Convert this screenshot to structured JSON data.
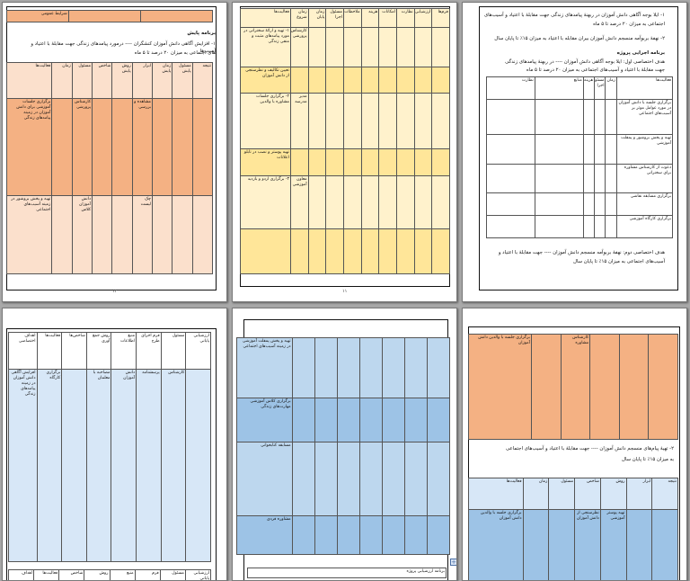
{
  "page_numbers": {
    "p1": "۱۰",
    "p2": "۱۱",
    "p3": "۱۲"
  },
  "page1": {
    "lines": [
      "۱- ایلا بوجه آگاهی دانش آموزان در ربهنهٔ پیامدهای زندگی جهت مقابلهٔ با اعتیاد و آسیب‌های",
      "اجتماعی به میزان ۲۰ درصد تا ۵ ماه",
      "۲- نهفهٔ بربوآمه منسجم دانش آموزان بیران مقابله با اعتیاد به میزان ۱۵٪ تا پایان سال"
    ],
    "section_title": "برنامه اجرایی پروژه",
    "goal_line": "هدف اختصاصی اول: ایلا بوجه آگاهی دانش آموزان ---- در ربهنهٔ پیامدهای زندگی",
    "goal_line2": "جهت مقابلهٔ با اعتیاد و آسیب‌های اجتماعی به میزان ۲۰ درصد تا ۵ ماه",
    "table_headers": [
      "فعالیت‌ها",
      "زمان",
      "مسئول اجرا",
      "هزینه",
      "منابع",
      "نظارت"
    ],
    "rows": [
      "برگزاری جلسه با دانش آموزان در مورد عوامل موثر بر آسیب‌های اجتماعی",
      "تهیه و پخش بروشور و پمفلت آموزشی",
      "دعوت از کارشناس مشاوره برای سخنرانی",
      "برگزاری مسابقه نقاشی",
      "برگزاری کارگاه آموزشی"
    ],
    "goal2_line": "هدف اختصاصی دوم: نهفهٔ بربوآمه منسجم دانش آموزان ---- جهت مقابلهٔ با اعتیاد و",
    "goal2_line2": "آسیب‌های اجتماعی به میزان ۱۵٪ تا پایان سال"
  },
  "page2": {
    "headers": [
      "فعالیت‌ها",
      "زمان شروع",
      "زمان پایان",
      "مسئول اجرا",
      "ملاحظات",
      "هزینه",
      "امکانات",
      "نظارت",
      "ارزشیابی",
      "فرم‌ها"
    ],
    "cells": [
      "۱- تهیه و ارائهٔ سخنرانی در مورد پیامدهای مثبت و منفی زندگی",
      "کارشناس پرورشی",
      "تعیین تکالیف و نظرسنجی از دانش آموزان",
      "۲- برگزاری جلسات مشاوره با والدین",
      "مدیر مدرسه",
      "تهیه پوستر و نصب در تابلو اعلانات",
      "۳- برگزاری اردو و بازدید",
      "معاون آموزشی"
    ]
  },
  "page3": {
    "header_title": "شرایط عمومی",
    "section_title": "برنامه پایش",
    "line1": "۱- افزایش آگاهی دانش آموزان کنشگران ---- درمورد پیامدهای زندگی جهت مقابلهٔ با اعتیاد و آسیب‌ها",
    "line2": "های اجتماعی به میزان ۲۰ درصد تا ۵ ماه",
    "headers": [
      "فعالیت‌ها",
      "زمان",
      "مسئول",
      "شاخص",
      "روش پایش",
      "ابزار",
      "زمان پایش",
      "مسئول پایش",
      "نتیجه"
    ],
    "cells": [
      "برگزاری جلسات آموزشی برای دانش آموزان در زمینه پیامدهای زندگی",
      "کارشناس پرورشی",
      "مشاهده و بررسی",
      "تهیه و پخش بروشور در زمینه آسیب‌های اجتماعی",
      "دانش آموزان کلاس",
      "چک لیست"
    ]
  },
  "page4": {
    "headers": [
      "ارزشیابی پایانی",
      "مسئول",
      "فرم اجرای طرح",
      "منبع اطلاعات",
      "روش جمع آوری",
      "شاخص‌ها",
      "فعالیت‌ها",
      "اهداف اختصاصی"
    ],
    "cells": [
      "افزایش آگاهی دانش آموزان در زمینه پیامدهای زندگی",
      "برگزاری کارگاه",
      "پرسشنامه",
      "دانش آموزان",
      "کارشناس",
      "مصاحبه با معلمان"
    ],
    "footer": [
      "اهداف",
      "فعالیت‌ها",
      "شاخص",
      "روش",
      "منبع",
      "فرم",
      "مسئول",
      "ارزشیابی پایانی"
    ]
  },
  "page5": {
    "cells": [
      "تهیه و پخش پمفلت آموزشی در زمینه آسیب‌های اجتماعی",
      "برگزاری کلاس آموزشی مهارت‌های زندگی",
      "مسابقه کتابخوانی",
      "مشاوره فردی"
    ],
    "footer_title": "برنامه ارزشیابی پروژه"
  },
  "page6": {
    "line1": "۲- تهیهٔ پیام‌های منسجم دانش آموزان ---- جهت مقابلهٔ با اعتیاد و آسیب‌های اجتماعی",
    "line2": "به میزان ۱۵٪ تا پایان سال",
    "headers": [
      "فعالیت‌ها",
      "زمان",
      "مسئول",
      "شاخص",
      "روش",
      "ابزار",
      "نتیجه"
    ],
    "cells": [
      "برگزاری جلسه با والدین دانش آموزان",
      "کارشناس مشاوره",
      "نظرسنجی از دانش آموزان",
      "تهیه پوستر آموزشی"
    ]
  },
  "colors": {
    "orange": "#f4b183",
    "orange_light": "#fbe0cc",
    "yellow": "#ffe699",
    "yellow_light": "#fff2cc",
    "blue": "#9dc3e6",
    "blue_light": "#d7e7f7"
  }
}
